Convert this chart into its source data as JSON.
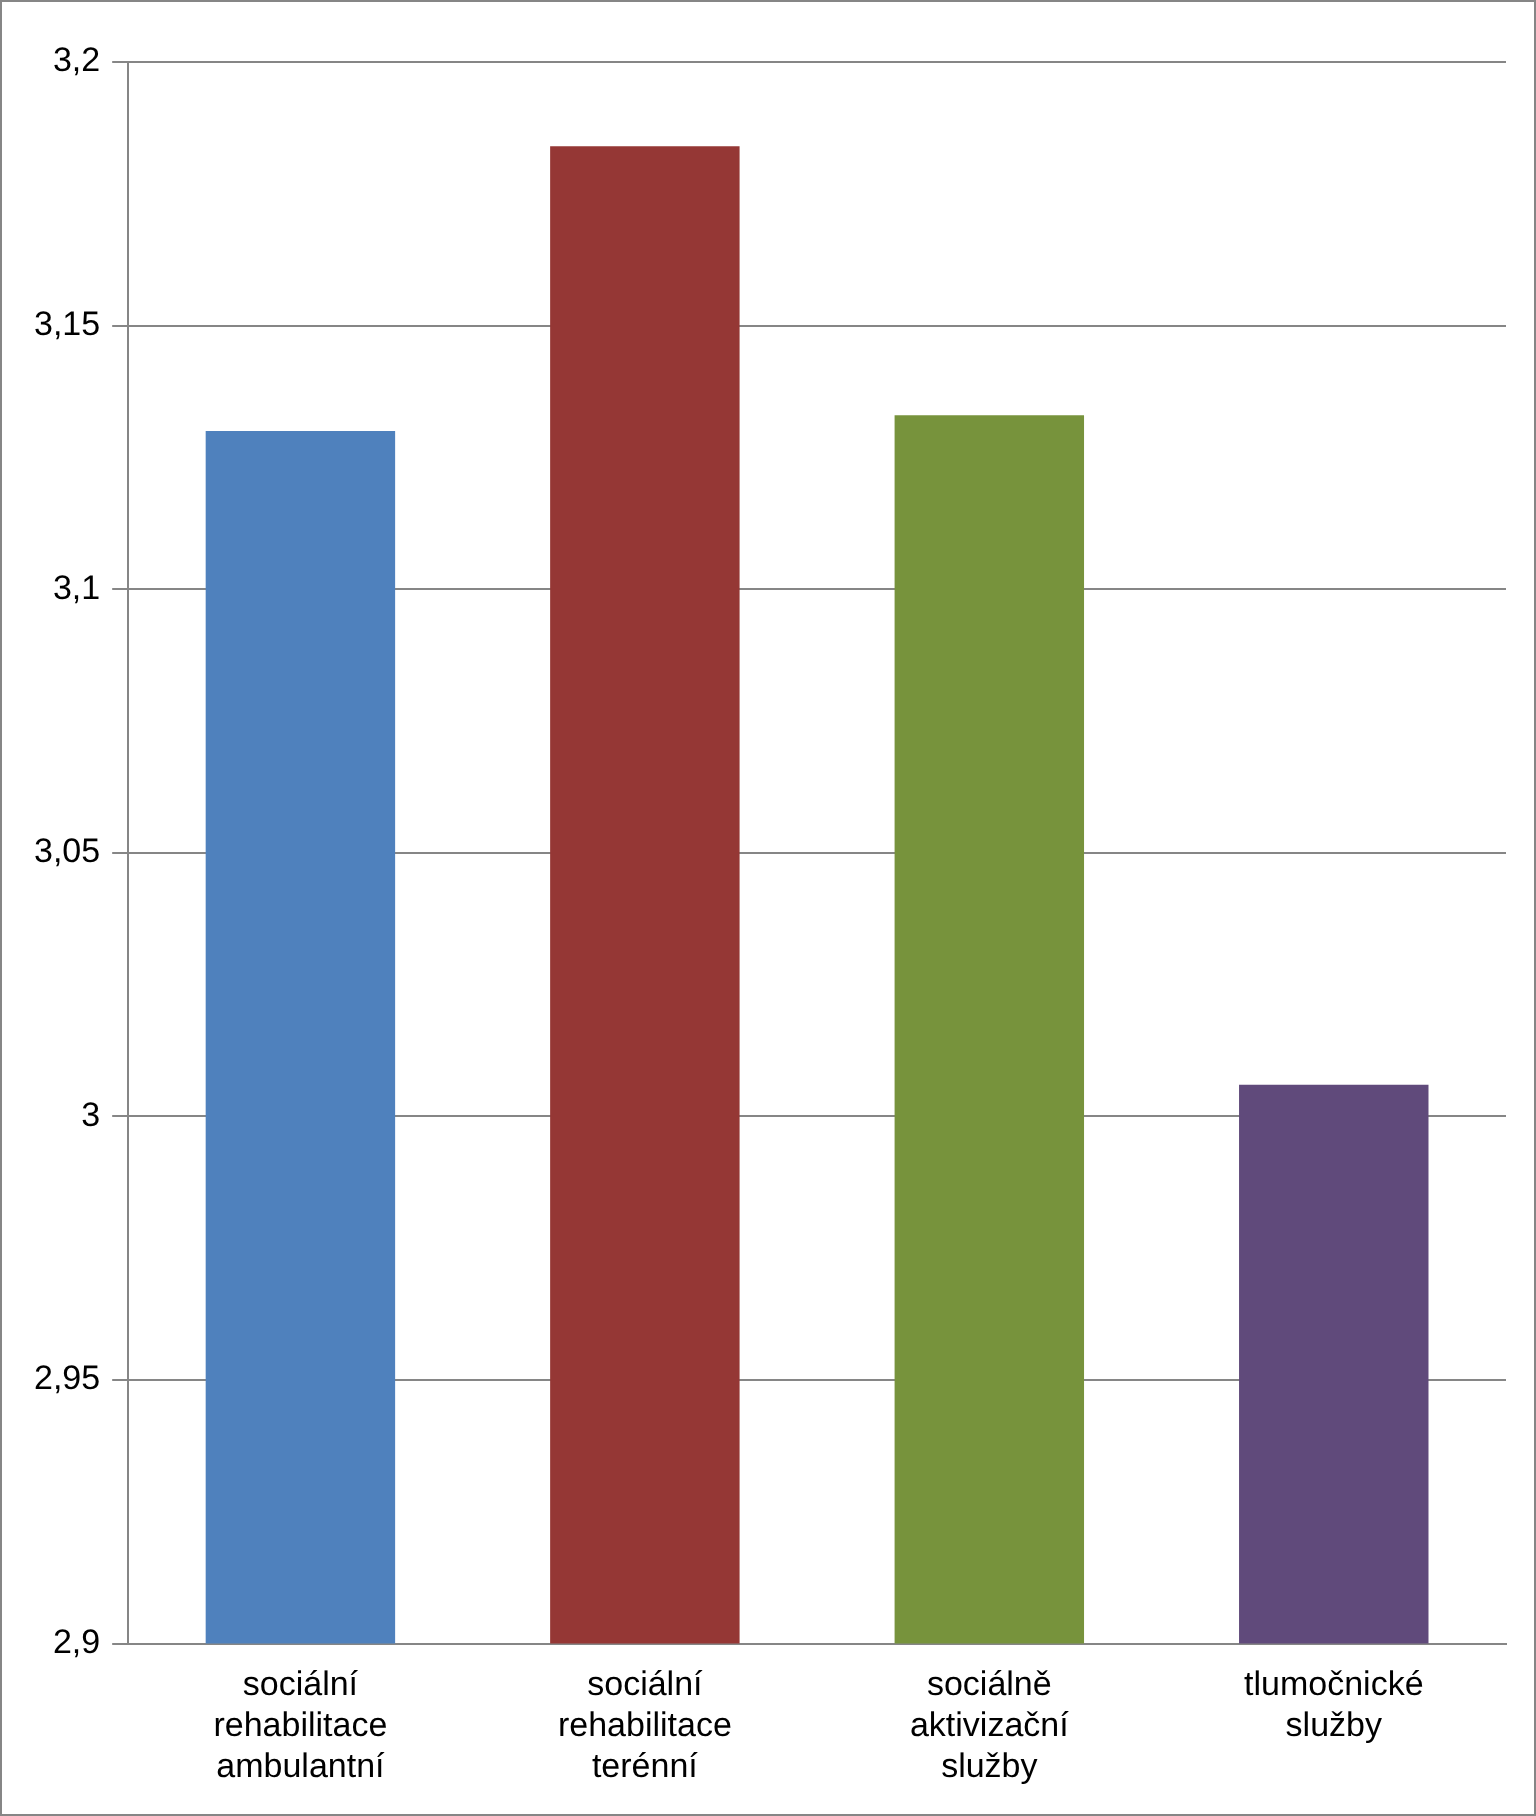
{
  "chart_data": {
    "type": "bar",
    "categories": [
      "sociální rehabilitace ambulantní",
      "sociální rehabilitace terénní",
      "sociálně aktivizační služby",
      "tlumočnické služby"
    ],
    "values": [
      3.13,
      3.184,
      3.133,
      3.006
    ],
    "colors": [
      "#4f81bd",
      "#953735",
      "#77933c",
      "#604a7b"
    ],
    "ylim": [
      2.9,
      3.2
    ],
    "yticks": [
      {
        "value": 2.9,
        "label": "2,9"
      },
      {
        "value": 2.95,
        "label": "2,95"
      },
      {
        "value": 3,
        "label": "3"
      },
      {
        "value": 3.05,
        "label": "3,05"
      },
      {
        "value": 3.1,
        "label": "3,1"
      },
      {
        "value": 3.15,
        "label": "3,15"
      },
      {
        "value": 3.2,
        "label": "3,2"
      }
    ],
    "grid": "y",
    "legend": false
  }
}
